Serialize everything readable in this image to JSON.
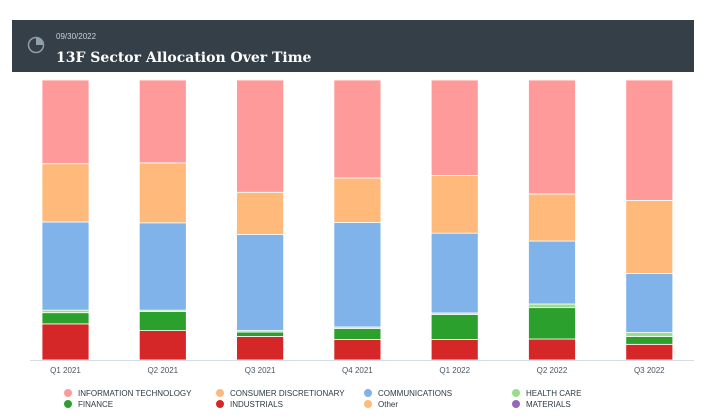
{
  "header": {
    "date": "09/30/2022",
    "title": "13F Sector Allocation Over Time"
  },
  "colors": {
    "INFORMATION TECHNOLOGY": "#ff9a9a",
    "CONSUMER DISCRETIONARY": "#ffb97a",
    "COMMUNICATIONS": "#7fb3ea",
    "HEALTH CARE": "#98df8a",
    "FINANCE": "#2ca02c",
    "INDUSTRIALS": "#d62728",
    "Other": "#ffbb78",
    "MATERIALS": "#9467bd"
  },
  "chart_data": {
    "type": "bar",
    "stacked": true,
    "normalized": true,
    "title": "13F Sector Allocation Over Time",
    "categories": [
      "Q1 2021",
      "Q2 2021",
      "Q3 2021",
      "Q4 2021",
      "Q1 2022",
      "Q2 2022",
      "Q3 2022"
    ],
    "ylim": [
      0,
      100
    ],
    "legend_position": "bottom",
    "series": [
      {
        "name": "INDUSTRIALS",
        "values": [
          12.9,
          10.5,
          8.4,
          7.3,
          7.3,
          7.5,
          5.6
        ]
      },
      {
        "name": "FINANCE",
        "values": [
          4.0,
          6.8,
          1.6,
          4.0,
          9.0,
          11.2,
          2.8
        ]
      },
      {
        "name": "HEALTH CARE",
        "values": [
          0.9,
          0.5,
          0.5,
          0.5,
          0.5,
          1.3,
          1.4
        ]
      },
      {
        "name": "COMMUNICATIONS",
        "values": [
          31.5,
          31.2,
          34.3,
          37.3,
          28.5,
          22.5,
          21.1
        ]
      },
      {
        "name": "CONSUMER DISCRETIONARY",
        "values": [
          20.8,
          21.4,
          15.1,
          15.9,
          20.6,
          16.8,
          26.1
        ]
      },
      {
        "name": "INFORMATION TECHNOLOGY",
        "values": [
          29.9,
          29.6,
          40.1,
          35.0,
          34.1,
          40.7,
          43.0
        ]
      }
    ]
  },
  "legend": [
    {
      "label": "INFORMATION TECHNOLOGY",
      "color": "#ff9a9a"
    },
    {
      "label": "FINANCE",
      "color": "#2ca02c"
    },
    {
      "label": "CONSUMER DISCRETIONARY",
      "color": "#ffb97a"
    },
    {
      "label": "INDUSTRIALS",
      "color": "#d62728"
    },
    {
      "label": "COMMUNICATIONS",
      "color": "#7fb3ea"
    },
    {
      "label": "Other",
      "color": "#ffbb78"
    },
    {
      "label": "HEALTH CARE",
      "color": "#98df8a"
    },
    {
      "label": "MATERIALS",
      "color": "#9467bd"
    }
  ]
}
